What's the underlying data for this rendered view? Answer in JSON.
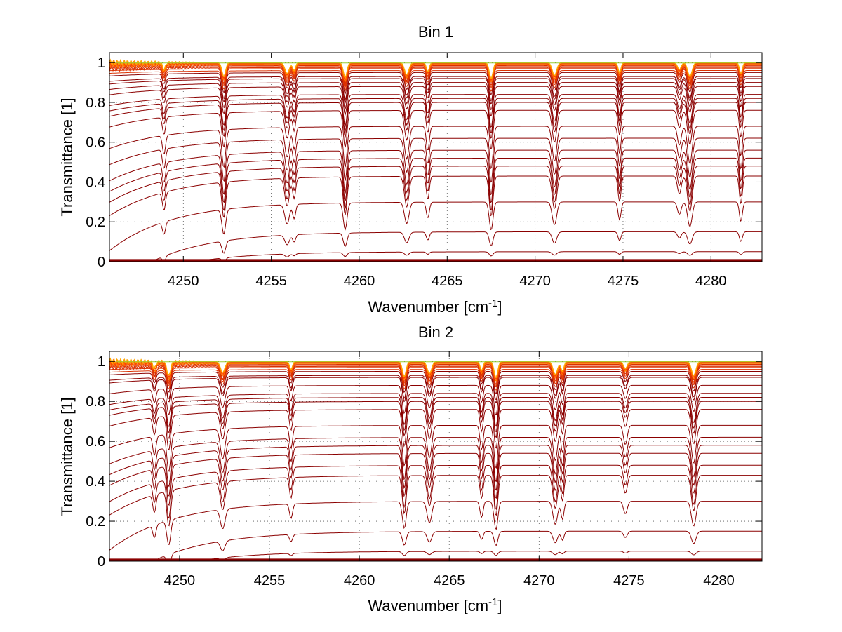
{
  "chart_data": [
    {
      "type": "line",
      "title": "Bin 1",
      "xlabel": "Wavenumber [cm",
      "xlabel_sup": "-1",
      "xlabel_end": "]",
      "ylabel": "Transmittance [1]",
      "xlim": [
        4245.8,
        4282.9
      ],
      "ylim": [
        0,
        1.05
      ],
      "xticks": [
        4250,
        4255,
        4260,
        4265,
        4270,
        4275,
        4280
      ],
      "yticks": [
        0,
        0.2,
        0.4,
        0.6,
        0.8,
        1
      ],
      "ytick_labels": [
        "0",
        "0.2",
        "0.4",
        "0.6",
        "0.8",
        "1"
      ],
      "grid": true,
      "line_colors": [
        "#8b0000",
        "#ff4500",
        "#ffa500",
        "#9acd32"
      ],
      "num_series_approx": 30,
      "baselines": [
        1.0,
        0.995,
        0.99,
        0.985,
        0.98,
        0.975,
        0.97,
        0.96,
        0.95,
        0.93,
        0.92,
        0.9,
        0.88,
        0.84,
        0.82,
        0.8,
        0.76,
        0.68,
        0.62,
        0.56,
        0.52,
        0.48,
        0.43,
        0.3,
        0.15,
        0.05,
        0.01
      ],
      "absorption_lines": [
        4248.9,
        4252.3,
        4255.9,
        4256.3,
        4259.2,
        4262.7,
        4263.9,
        4267.5,
        4271.1,
        4274.8,
        4278.2,
        4278.8,
        4281.7
      ]
    },
    {
      "type": "line",
      "title": "Bin 2",
      "xlabel": "Wavenumber [cm",
      "xlabel_sup": "-1",
      "xlabel_end": "]",
      "ylabel": "Transmittance [1]",
      "xlim": [
        4246.1,
        4282.4
      ],
      "ylim": [
        0,
        1.05
      ],
      "xticks": [
        4250,
        4255,
        4260,
        4265,
        4270,
        4275,
        4280
      ],
      "yticks": [
        0,
        0.2,
        0.4,
        0.6,
        0.8,
        1
      ],
      "ytick_labels": [
        "0",
        "0.2",
        "0.4",
        "0.6",
        "0.8",
        "1"
      ],
      "grid": true,
      "line_colors": [
        "#8b0000",
        "#ff4500",
        "#ffa500",
        "#9acd32"
      ],
      "num_series_approx": 30,
      "baselines": [
        1.0,
        0.995,
        0.99,
        0.985,
        0.98,
        0.975,
        0.97,
        0.96,
        0.95,
        0.93,
        0.92,
        0.88,
        0.84,
        0.82,
        0.8,
        0.76,
        0.68,
        0.62,
        0.58,
        0.54,
        0.48,
        0.43,
        0.3,
        0.15,
        0.05,
        0.01
      ],
      "absorption_lines": [
        4248.6,
        4249.4,
        4252.4,
        4256.2,
        4262.5,
        4263.9,
        4266.8,
        4267.6,
        4270.9,
        4271.3,
        4274.8,
        4278.6
      ]
    }
  ]
}
